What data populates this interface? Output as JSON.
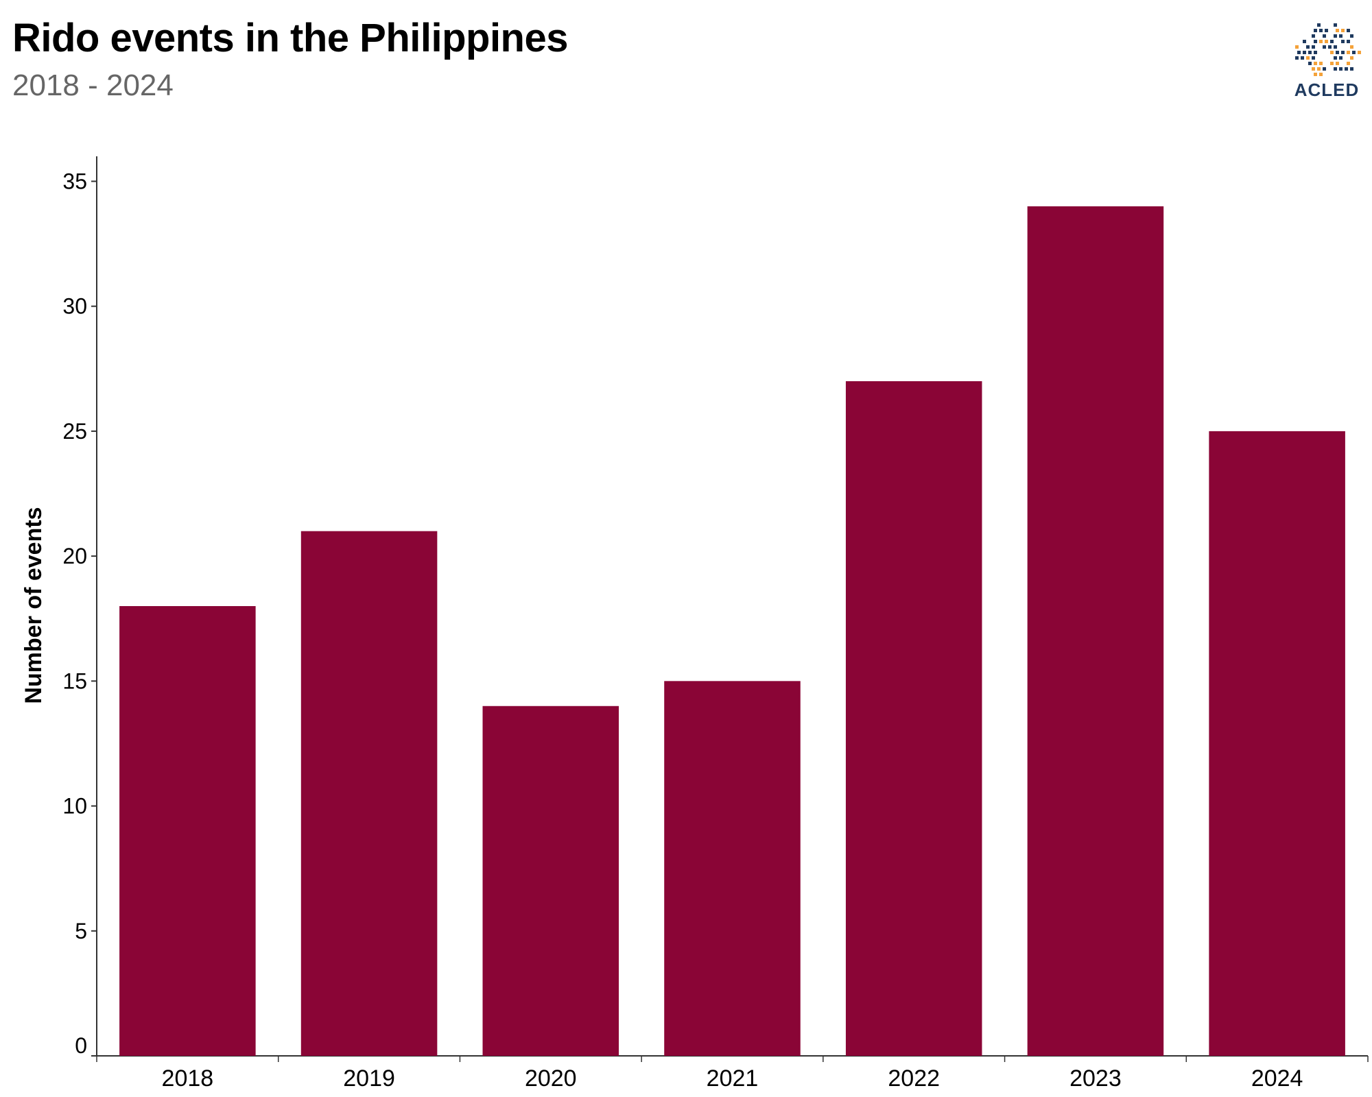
{
  "header": {
    "title": "Rido events in the Philippines",
    "subtitle": "2018 - 2024"
  },
  "logo": {
    "text": "ACLED",
    "icon": "acled-globe-icon",
    "colors": {
      "navy": "#1f3a5f",
      "orange": "#f4a23a"
    }
  },
  "chart_data": {
    "type": "bar",
    "categories": [
      "2018",
      "2019",
      "2020",
      "2021",
      "2022",
      "2023",
      "2024"
    ],
    "values": [
      18,
      21,
      14,
      15,
      27,
      34,
      25
    ],
    "title": "Rido events in the Philippines",
    "subtitle": "2018 - 2024",
    "xlabel": "",
    "ylabel": "Number of events",
    "ylim": [
      0,
      36
    ],
    "yticks": [
      0,
      5,
      10,
      15,
      20,
      25,
      30,
      35
    ],
    "bar_color": "#8a0536",
    "grid": false,
    "legend": "none"
  }
}
